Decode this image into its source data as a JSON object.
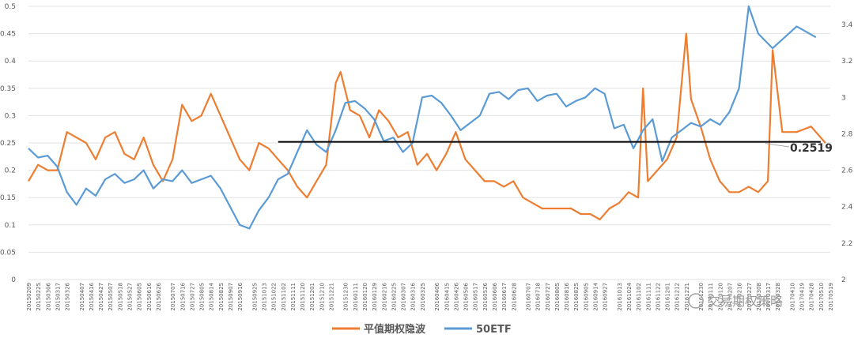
{
  "chart_data": {
    "type": "line",
    "title": "",
    "xlabel": "",
    "ylabel": "",
    "ylim": [
      0,
      0.5
    ],
    "y2lim": [
      2,
      3.5
    ],
    "yticks": [
      "0",
      "0.05",
      "0.1",
      "0.15",
      "0.2",
      "0.25",
      "0.3",
      "0.35",
      "0.4",
      "0.45",
      "0.5"
    ],
    "y2ticks": [
      "2",
      "2.2",
      "2.4",
      "2.6",
      "2.8",
      "3",
      "3.2",
      "3.4"
    ],
    "grid": "horizontal",
    "legend": "bottom",
    "x_labels": [
      "20150209",
      "20150225",
      "20150306",
      "20150317",
      "20150326",
      "20150407",
      "20150416",
      "20150427",
      "20150507",
      "20150518",
      "20150527",
      "20150605",
      "20150616",
      "20150626",
      "20150707",
      "20150716",
      "20150727",
      "20150805",
      "20150814",
      "20150825",
      "20150907",
      "20150916",
      "20150925",
      "20151013",
      "20151022",
      "20151102",
      "20151111",
      "20151120",
      "20151201",
      "20151210",
      "20151221",
      "20151230",
      "20160111",
      "20160120",
      "20160129",
      "20160216",
      "20160225",
      "20160307",
      "20160316",
      "20160325",
      "20160406",
      "20160415",
      "20160426",
      "20160506",
      "20160517",
      "20160526",
      "20160606",
      "20160617",
      "20160628",
      "20160707",
      "20160718",
      "20160727",
      "20160805",
      "20160816",
      "20160825",
      "20160905",
      "20160914",
      "20160927",
      "20161013",
      "20161024",
      "20161102",
      "20161111",
      "20161122",
      "20161201",
      "20161212",
      "20161221",
      "20161230",
      "20170111",
      "20170120",
      "20170207",
      "20170216",
      "20170227",
      "20170308",
      "20170317",
      "20170328",
      "20170410",
      "20170419",
      "20170428",
      "20170510",
      "20170519"
    ],
    "series": [
      {
        "name": "平值期权隐波",
        "axis": "left",
        "color": "#ED7D31",
        "values": [
          0.18,
          0.21,
          0.2,
          0.2,
          0.27,
          0.26,
          0.25,
          0.22,
          0.26,
          0.27,
          0.23,
          0.22,
          0.26,
          0.21,
          0.18,
          0.22,
          0.32,
          0.29,
          0.3,
          0.34,
          0.3,
          0.26,
          0.22,
          0.2,
          0.25,
          0.24,
          0.22,
          0.2,
          0.17,
          0.15,
          0.18,
          0.21,
          0.36,
          0.38,
          0.31,
          0.3,
          0.26,
          0.31,
          0.29,
          0.26,
          0.27,
          0.21,
          0.23,
          0.2,
          0.23,
          0.27,
          0.22,
          0.2,
          0.18,
          0.18,
          0.17,
          0.18,
          0.15,
          0.14,
          0.13,
          0.13,
          0.13,
          0.13,
          0.12,
          0.12,
          0.11,
          0.13,
          0.14,
          0.16,
          0.15,
          0.35,
          0.18,
          0.2,
          0.22,
          0.26,
          0.45,
          0.33,
          0.28,
          0.22,
          0.18,
          0.16,
          0.16,
          0.17,
          0.16,
          0.18,
          0.42,
          0.27,
          0.27,
          0.28,
          0.25
        ],
        "x_index": [
          0,
          2,
          4,
          6,
          8,
          10,
          12,
          14,
          16,
          18,
          20,
          22,
          24,
          26,
          28,
          30,
          32,
          34,
          36,
          38,
          40,
          42,
          44,
          46,
          48,
          50,
          52,
          54,
          56,
          58,
          60,
          62,
          64,
          65,
          67,
          69,
          71,
          73,
          75,
          77,
          79,
          81,
          83,
          85,
          87,
          89,
          91,
          93,
          95,
          97,
          99,
          101,
          103,
          105,
          107,
          109,
          111,
          113,
          115,
          117,
          119,
          121,
          123,
          125,
          127,
          128,
          129,
          131,
          133,
          135,
          137,
          138,
          140,
          142,
          144,
          146,
          148,
          150,
          152,
          154,
          155,
          157,
          160,
          163,
          166
        ]
      },
      {
        "name": "50ETF",
        "axis": "right",
        "color": "#5B9BD5",
        "values": [
          2.72,
          2.67,
          2.68,
          2.62,
          2.48,
          2.41,
          2.5,
          2.46,
          2.55,
          2.58,
          2.53,
          2.55,
          2.6,
          2.5,
          2.55,
          2.54,
          2.6,
          2.53,
          2.55,
          2.57,
          2.5,
          2.4,
          2.3,
          2.28,
          2.38,
          2.45,
          2.55,
          2.58,
          2.7,
          2.82,
          2.74,
          2.7,
          2.82,
          2.97,
          2.98,
          2.94,
          2.88,
          2.76,
          2.78,
          2.7,
          2.75,
          3,
          3.01,
          2.97,
          2.9,
          2.82,
          2.86,
          2.9,
          3.02,
          3.03,
          2.99,
          3.04,
          3.05,
          2.98,
          3.01,
          3.02,
          2.95,
          2.98,
          3,
          3.05,
          3.02,
          2.83,
          2.85,
          2.72,
          2.82,
          2.88,
          2.65,
          2.78,
          2.82,
          2.86,
          2.84,
          2.88,
          2.85,
          2.92,
          3.05,
          3.5,
          3.35,
          3.27,
          3.39,
          3.33
        ],
        "x_index": [
          0,
          2,
          4,
          6,
          8,
          10,
          12,
          14,
          16,
          18,
          20,
          22,
          24,
          26,
          28,
          30,
          32,
          34,
          36,
          38,
          40,
          42,
          44,
          46,
          48,
          50,
          52,
          54,
          56,
          58,
          60,
          62,
          64,
          66,
          68,
          70,
          72,
          74,
          76,
          78,
          80,
          82,
          84,
          86,
          88,
          90,
          92,
          94,
          96,
          98,
          100,
          102,
          104,
          106,
          108,
          110,
          112,
          114,
          116,
          118,
          120,
          122,
          124,
          126,
          128,
          130,
          132,
          134,
          136,
          138,
          140,
          142,
          144,
          146,
          148,
          150,
          152,
          155,
          160,
          164
        ]
      }
    ],
    "hline": {
      "value": 0.2519,
      "axis": "left",
      "label": "0.2519",
      "color": "#000000"
    },
    "x_count": 168
  },
  "watermark": "交易期权策略"
}
